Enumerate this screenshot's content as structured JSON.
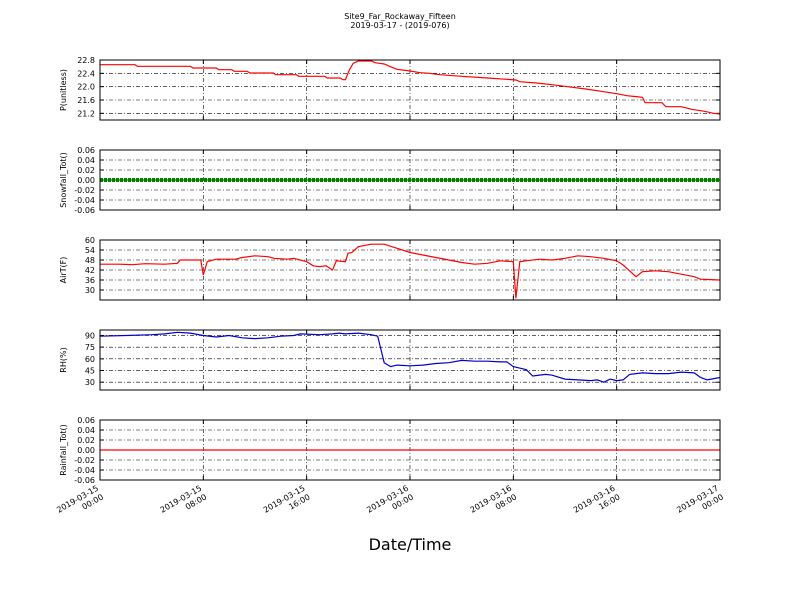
{
  "title_line1": "Site9_Far_Rockaway_Fifteen",
  "title_line2": "2019-03-17 - (2019-076)",
  "chart_data": {
    "type": "line",
    "xlabel": "Date/Time",
    "x_range": [
      "2019-03-15 00:00",
      "2019-03-17 00:00"
    ],
    "x_ticks": [
      {
        "t": 0,
        "line1": "2019-03-15",
        "line2": "00:00"
      },
      {
        "t": 8,
        "line1": "2019-03-15",
        "line2": "08:00"
      },
      {
        "t": 16,
        "line1": "2019-03-15",
        "line2": "16:00"
      },
      {
        "t": 24,
        "line1": "2019-03-16",
        "line2": "00:00"
      },
      {
        "t": 32,
        "line1": "2019-03-16",
        "line2": "08:00"
      },
      {
        "t": 40,
        "line1": "2019-03-16",
        "line2": "16:00"
      },
      {
        "t": 48,
        "line1": "2019-03-17",
        "line2": "00:00"
      }
    ],
    "x_unit_note": "hours after 2019-03-15 00:00",
    "grid": true,
    "panels": [
      {
        "ylabel": "P(unitless)",
        "ylim": [
          21.0,
          22.8
        ],
        "yticks": [
          "21.2",
          "21.6",
          "22.0",
          "22.4",
          "22.8"
        ],
        "ytick_values": [
          21.2,
          21.6,
          22.0,
          22.4,
          22.8
        ],
        "color": "#ff0000",
        "marker": false,
        "points": [
          [
            0,
            22.66
          ],
          [
            2.7,
            22.66
          ],
          [
            2.9,
            22.61
          ],
          [
            7.0,
            22.61
          ],
          [
            7.2,
            22.56
          ],
          [
            9.0,
            22.56
          ],
          [
            9.2,
            22.51
          ],
          [
            10.2,
            22.51
          ],
          [
            10.4,
            22.46
          ],
          [
            11.4,
            22.46
          ],
          [
            11.6,
            22.41
          ],
          [
            13.4,
            22.41
          ],
          [
            13.6,
            22.36
          ],
          [
            15.2,
            22.36
          ],
          [
            15.4,
            22.31
          ],
          [
            17.4,
            22.31
          ],
          [
            17.6,
            22.26
          ],
          [
            18.6,
            22.26
          ],
          [
            18.8,
            22.21
          ],
          [
            19.0,
            22.21
          ],
          [
            19.3,
            22.5
          ],
          [
            19.6,
            22.7
          ],
          [
            20.0,
            22.77
          ],
          [
            21.0,
            22.77
          ],
          [
            21.3,
            22.72
          ],
          [
            22.0,
            22.68
          ],
          [
            22.6,
            22.58
          ],
          [
            23.0,
            22.52
          ],
          [
            24.0,
            22.47
          ],
          [
            24.8,
            22.42
          ],
          [
            25.5,
            22.4
          ],
          [
            26.3,
            22.36
          ],
          [
            28.0,
            22.31
          ],
          [
            30.0,
            22.26
          ],
          [
            31.5,
            22.22
          ],
          [
            32.2,
            22.2
          ],
          [
            32.5,
            22.15
          ],
          [
            33.8,
            22.11
          ],
          [
            35.0,
            22.06
          ],
          [
            36.2,
            22.0
          ],
          [
            37.6,
            21.93
          ],
          [
            38.8,
            21.86
          ],
          [
            40.0,
            21.79
          ],
          [
            40.8,
            21.73
          ],
          [
            42.0,
            21.68
          ],
          [
            42.2,
            21.52
          ],
          [
            43.5,
            21.52
          ],
          [
            43.8,
            21.4
          ],
          [
            45.0,
            21.4
          ],
          [
            45.8,
            21.32
          ],
          [
            46.8,
            21.26
          ],
          [
            47.5,
            21.2
          ],
          [
            48.0,
            21.18
          ]
        ]
      },
      {
        "ylabel": "Snowfall_Tot()",
        "ylim": [
          -0.06,
          0.06
        ],
        "yticks": [
          "-0.06",
          "-0.04",
          "-0.02",
          "0.00",
          "0.02",
          "0.04",
          "0.06"
        ],
        "ytick_values": [
          -0.06,
          -0.04,
          -0.02,
          0.0,
          0.02,
          0.04,
          0.06
        ],
        "color": "#008000",
        "marker": true,
        "points": [
          [
            0,
            0
          ],
          [
            48,
            0
          ]
        ]
      },
      {
        "ylabel": "AirT(F)",
        "ylim": [
          24,
          60
        ],
        "yticks": [
          "30",
          "36",
          "42",
          "48",
          "54",
          "60"
        ],
        "ytick_values": [
          30,
          36,
          42,
          48,
          54,
          60
        ],
        "color": "#ff0000",
        "marker": false,
        "points": [
          [
            0,
            45.5
          ],
          [
            1.5,
            45.5
          ],
          [
            2.5,
            45.2
          ],
          [
            3.5,
            45.8
          ],
          [
            5.0,
            45.5
          ],
          [
            6.0,
            46.0
          ],
          [
            6.2,
            48.0
          ],
          [
            7.8,
            48.0
          ],
          [
            8.0,
            39.0
          ],
          [
            8.3,
            47.0
          ],
          [
            9.0,
            48.5
          ],
          [
            10.5,
            48.5
          ],
          [
            11.0,
            49.5
          ],
          [
            12.0,
            50.5
          ],
          [
            13.0,
            50.0
          ],
          [
            13.5,
            49.0
          ],
          [
            14.5,
            48.5
          ],
          [
            15.0,
            49.0
          ],
          [
            16.0,
            47.0
          ],
          [
            16.5,
            44.5
          ],
          [
            17.0,
            44.0
          ],
          [
            17.5,
            44.5
          ],
          [
            18.0,
            42.0
          ],
          [
            18.3,
            47.5
          ],
          [
            19.0,
            47.0
          ],
          [
            19.2,
            52.0
          ],
          [
            19.5,
            52.5
          ],
          [
            20.0,
            56.0
          ],
          [
            21.0,
            57.5
          ],
          [
            22.0,
            57.5
          ],
          [
            23.0,
            55.0
          ],
          [
            24.0,
            52.5
          ],
          [
            25.0,
            51.0
          ],
          [
            26.0,
            49.5
          ],
          [
            27.0,
            48.0
          ],
          [
            28.0,
            46.5
          ],
          [
            29.0,
            45.5
          ],
          [
            30.0,
            46.0
          ],
          [
            31.0,
            47.5
          ],
          [
            32.0,
            47.0
          ],
          [
            32.2,
            25.0
          ],
          [
            32.5,
            47.0
          ],
          [
            33.0,
            47.5
          ],
          [
            34.0,
            48.5
          ],
          [
            35.0,
            48.0
          ],
          [
            36.0,
            49.0
          ],
          [
            37.0,
            50.5
          ],
          [
            38.0,
            50.0
          ],
          [
            39.0,
            49.0
          ],
          [
            40.0,
            47.5
          ],
          [
            40.5,
            45.0
          ],
          [
            41.0,
            41.5
          ],
          [
            41.5,
            38.0
          ],
          [
            42.0,
            41.0
          ],
          [
            43.0,
            41.5
          ],
          [
            44.0,
            41.0
          ],
          [
            45.0,
            39.5
          ],
          [
            46.0,
            38.0
          ],
          [
            46.5,
            36.5
          ],
          [
            48.0,
            36.0
          ]
        ]
      },
      {
        "ylabel": "RH(%)",
        "ylim": [
          20,
          97
        ],
        "yticks": [
          "30",
          "45",
          "60",
          "75",
          "90"
        ],
        "ytick_values": [
          30,
          45,
          60,
          75,
          90
        ],
        "color": "#0000cc",
        "marker": false,
        "points": [
          [
            0,
            89
          ],
          [
            2.0,
            90
          ],
          [
            4.0,
            91
          ],
          [
            5.0,
            92
          ],
          [
            6.0,
            94
          ],
          [
            7.0,
            93
          ],
          [
            8.0,
            90
          ],
          [
            9.0,
            88
          ],
          [
            10.0,
            90
          ],
          [
            11.0,
            87
          ],
          [
            12.0,
            86
          ],
          [
            13.0,
            87
          ],
          [
            14.0,
            89
          ],
          [
            15.0,
            90
          ],
          [
            15.5,
            92
          ],
          [
            17.0,
            91
          ],
          [
            18.0,
            92
          ],
          [
            18.5,
            93
          ],
          [
            19.0,
            92
          ],
          [
            20.0,
            93
          ],
          [
            21.0,
            91
          ],
          [
            21.5,
            89
          ],
          [
            22.0,
            55
          ],
          [
            22.5,
            50
          ],
          [
            23.0,
            52
          ],
          [
            24.0,
            51
          ],
          [
            25.0,
            52
          ],
          [
            26.0,
            54
          ],
          [
            27.0,
            55
          ],
          [
            28.0,
            58
          ],
          [
            29.0,
            57
          ],
          [
            30.0,
            57
          ],
          [
            31.0,
            56
          ],
          [
            31.5,
            56
          ],
          [
            32.0,
            50
          ],
          [
            33.0,
            46
          ],
          [
            33.5,
            38
          ],
          [
            34.5,
            40
          ],
          [
            35.0,
            39
          ],
          [
            36.0,
            34
          ],
          [
            37.0,
            33
          ],
          [
            38.0,
            32
          ],
          [
            38.5,
            33
          ],
          [
            39.0,
            30
          ],
          [
            39.5,
            34
          ],
          [
            40.0,
            32
          ],
          [
            40.5,
            33
          ],
          [
            41.0,
            40
          ],
          [
            42.0,
            42
          ],
          [
            43.0,
            41
          ],
          [
            44.0,
            41
          ],
          [
            45.0,
            43
          ],
          [
            46.0,
            42
          ],
          [
            46.5,
            36
          ],
          [
            47.0,
            33
          ],
          [
            48.0,
            36
          ]
        ]
      },
      {
        "ylabel": "Rainfall_Tot()",
        "ylim": [
          -0.06,
          0.06
        ],
        "yticks": [
          "-0.06",
          "-0.04",
          "-0.02",
          "0.00",
          "0.02",
          "0.04",
          "0.06"
        ],
        "ytick_values": [
          -0.06,
          -0.04,
          -0.02,
          0.0,
          0.02,
          0.04,
          0.06
        ],
        "color": "#ff0000",
        "marker": false,
        "points": [
          [
            0,
            0
          ],
          [
            48,
            0
          ]
        ]
      }
    ]
  }
}
